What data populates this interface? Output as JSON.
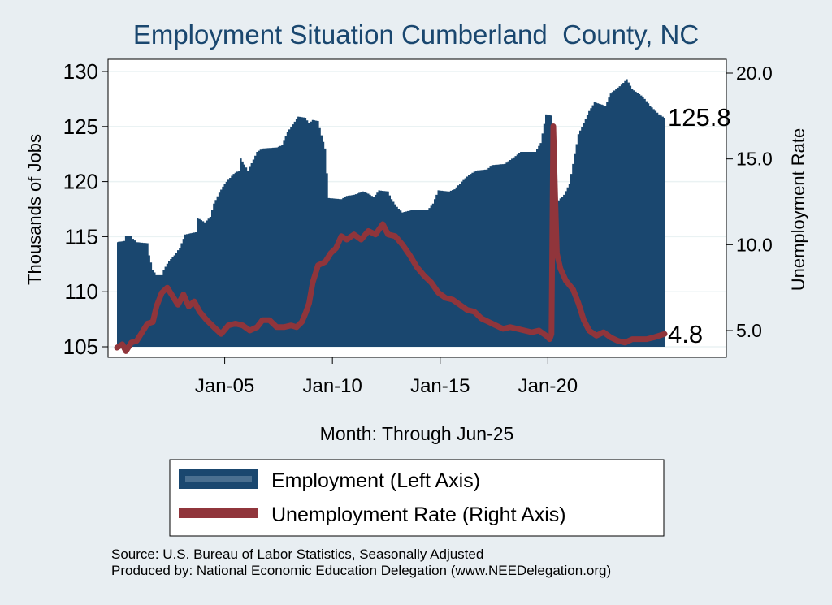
{
  "title": "Employment Situation Cumberland  County, NC",
  "chart_data": {
    "type": "area+line",
    "title": "Employment Situation Cumberland  County, NC",
    "xlabel": "Month: Through Jun-25",
    "ylabel_left": "Thousands of Jobs",
    "ylabel_right": "Unemployment Rate",
    "x_range": [
      "Jan-00",
      "Jun-25"
    ],
    "x_ticks": [
      "Jan-05",
      "Jan-10",
      "Jan-15",
      "Jan-20"
    ],
    "ylim_left": [
      105,
      130
    ],
    "yticks_left": [
      "105",
      "110",
      "115",
      "120",
      "125",
      "130"
    ],
    "ylim_right": [
      3.4,
      20.0
    ],
    "yticks_right": [
      "5.0",
      "10.0",
      "15.0",
      "20.0"
    ],
    "grid": true,
    "legend_position": "bottom",
    "series": [
      {
        "name": "Employment (Left Axis)",
        "type": "area",
        "color": "#1a476f",
        "end_label": "125.8",
        "points": [
          [
            "2000-01",
            114.5
          ],
          [
            "2000-05",
            114.6
          ],
          [
            "2000-06",
            115.1
          ],
          [
            "2000-09",
            115.1
          ],
          [
            "2000-10",
            114.8
          ],
          [
            "2000-12",
            114.5
          ],
          [
            "2001-06",
            114.4
          ],
          [
            "2001-07",
            113.3
          ],
          [
            "2001-09",
            112.0
          ],
          [
            "2001-11",
            111.5
          ],
          [
            "2002-02",
            111.5
          ],
          [
            "2002-03",
            112.0
          ],
          [
            "2002-06",
            112.8
          ],
          [
            "2002-09",
            113.3
          ],
          [
            "2002-12",
            114.0
          ],
          [
            "2003-03",
            115.2
          ],
          [
            "2003-09",
            115.4
          ],
          [
            "2003-10",
            116.7
          ],
          [
            "2004-02",
            116.3
          ],
          [
            "2004-05",
            116.8
          ],
          [
            "2004-07",
            118.0
          ],
          [
            "2004-10",
            119.0
          ],
          [
            "2005-01",
            119.8
          ],
          [
            "2005-06",
            120.7
          ],
          [
            "2005-09",
            121.0
          ],
          [
            "2005-10",
            122.1
          ],
          [
            "2006-02",
            121.0
          ],
          [
            "2006-05",
            122.0
          ],
          [
            "2006-07",
            122.7
          ],
          [
            "2006-10",
            123.0
          ],
          [
            "2007-06",
            123.1
          ],
          [
            "2007-09",
            123.3
          ],
          [
            "2007-12",
            124.5
          ],
          [
            "2008-03",
            125.2
          ],
          [
            "2008-06",
            125.9
          ],
          [
            "2008-10",
            125.8
          ],
          [
            "2008-12",
            125.3
          ],
          [
            "2009-02",
            125.6
          ],
          [
            "2009-05",
            125.5
          ],
          [
            "2009-07",
            124.2
          ],
          [
            "2009-09",
            123.0
          ],
          [
            "2009-11",
            118.5
          ],
          [
            "2010-06",
            118.4
          ],
          [
            "2010-09",
            118.7
          ],
          [
            "2011-01",
            118.8
          ],
          [
            "2011-06",
            119.1
          ],
          [
            "2011-09",
            118.9
          ],
          [
            "2011-12",
            118.6
          ],
          [
            "2012-03",
            119.2
          ],
          [
            "2012-08",
            119.1
          ],
          [
            "2012-10",
            118.4
          ],
          [
            "2013-01",
            117.7
          ],
          [
            "2013-04",
            117.2
          ],
          [
            "2013-09",
            117.4
          ],
          [
            "2014-06",
            117.4
          ],
          [
            "2014-09",
            118.0
          ],
          [
            "2014-12",
            119.2
          ],
          [
            "2015-06",
            119.1
          ],
          [
            "2015-09",
            119.3
          ],
          [
            "2016-01",
            120.0
          ],
          [
            "2016-05",
            120.6
          ],
          [
            "2016-09",
            121.0
          ],
          [
            "2017-03",
            121.1
          ],
          [
            "2017-06",
            121.5
          ],
          [
            "2018-01",
            121.6
          ],
          [
            "2018-06",
            122.2
          ],
          [
            "2018-10",
            122.7
          ],
          [
            "2019-06",
            122.7
          ],
          [
            "2019-09",
            123.5
          ],
          [
            "2019-12",
            126.1
          ],
          [
            "2020-03",
            126.0
          ],
          [
            "2020-04",
            115.7
          ],
          [
            "2020-07",
            118.3
          ],
          [
            "2020-10",
            118.8
          ],
          [
            "2021-01",
            119.8
          ],
          [
            "2021-04",
            122.5
          ],
          [
            "2021-06",
            124.3
          ],
          [
            "2021-09",
            125.3
          ],
          [
            "2021-12",
            126.4
          ],
          [
            "2022-03",
            127.2
          ],
          [
            "2022-09",
            126.9
          ],
          [
            "2022-12",
            128.0
          ],
          [
            "2023-06",
            128.8
          ],
          [
            "2023-09",
            129.3
          ],
          [
            "2023-12",
            128.4
          ],
          [
            "2024-06",
            127.7
          ],
          [
            "2024-10",
            126.9
          ],
          [
            "2025-03",
            126.1
          ],
          [
            "2025-06",
            125.8
          ]
        ]
      },
      {
        "name": "Unemployment Rate (Right Axis)",
        "type": "line",
        "color": "#90353b",
        "end_label": "4.8",
        "points": [
          [
            "2000-01",
            4.0
          ],
          [
            "2000-04",
            4.2
          ],
          [
            "2000-06",
            3.8
          ],
          [
            "2000-09",
            4.3
          ],
          [
            "2000-12",
            4.4
          ],
          [
            "2001-03",
            4.9
          ],
          [
            "2001-06",
            5.4
          ],
          [
            "2001-09",
            5.5
          ],
          [
            "2001-11",
            6.4
          ],
          [
            "2002-02",
            7.2
          ],
          [
            "2002-05",
            7.5
          ],
          [
            "2002-08",
            7.0
          ],
          [
            "2002-11",
            6.5
          ],
          [
            "2003-02",
            7.1
          ],
          [
            "2003-05",
            6.4
          ],
          [
            "2003-08",
            6.7
          ],
          [
            "2003-11",
            6.1
          ],
          [
            "2004-03",
            5.6
          ],
          [
            "2004-07",
            5.2
          ],
          [
            "2004-11",
            4.8
          ],
          [
            "2005-03",
            5.3
          ],
          [
            "2005-07",
            5.4
          ],
          [
            "2005-11",
            5.3
          ],
          [
            "2006-03",
            5.0
          ],
          [
            "2006-07",
            5.2
          ],
          [
            "2006-10",
            5.6
          ],
          [
            "2007-02",
            5.6
          ],
          [
            "2007-06",
            5.2
          ],
          [
            "2007-10",
            5.2
          ],
          [
            "2008-02",
            5.3
          ],
          [
            "2008-05",
            5.2
          ],
          [
            "2008-08",
            5.5
          ],
          [
            "2008-10",
            6.0
          ],
          [
            "2008-12",
            6.6
          ],
          [
            "2009-02",
            7.8
          ],
          [
            "2009-05",
            8.8
          ],
          [
            "2009-09",
            9.0
          ],
          [
            "2009-12",
            9.5
          ],
          [
            "2010-03",
            9.8
          ],
          [
            "2010-06",
            10.5
          ],
          [
            "2010-09",
            10.3
          ],
          [
            "2011-01",
            10.6
          ],
          [
            "2011-05",
            10.3
          ],
          [
            "2011-09",
            10.8
          ],
          [
            "2012-01",
            10.6
          ],
          [
            "2012-05",
            11.2
          ],
          [
            "2012-08",
            10.6
          ],
          [
            "2012-12",
            10.5
          ],
          [
            "2013-04",
            10.0
          ],
          [
            "2013-08",
            9.4
          ],
          [
            "2013-12",
            8.7
          ],
          [
            "2014-04",
            8.2
          ],
          [
            "2014-08",
            7.8
          ],
          [
            "2014-12",
            7.2
          ],
          [
            "2015-04",
            6.9
          ],
          [
            "2015-08",
            6.8
          ],
          [
            "2015-12",
            6.5
          ],
          [
            "2016-04",
            6.2
          ],
          [
            "2016-08",
            6.1
          ],
          [
            "2016-12",
            5.7
          ],
          [
            "2017-04",
            5.5
          ],
          [
            "2017-08",
            5.3
          ],
          [
            "2017-12",
            5.1
          ],
          [
            "2018-04",
            5.2
          ],
          [
            "2018-08",
            5.1
          ],
          [
            "2018-12",
            5.0
          ],
          [
            "2019-04",
            4.9
          ],
          [
            "2019-08",
            5.0
          ],
          [
            "2019-12",
            4.7
          ],
          [
            "2020-02",
            4.5
          ],
          [
            "2020-03",
            4.8
          ],
          [
            "2020-04",
            16.9
          ],
          [
            "2020-05",
            13.0
          ],
          [
            "2020-06",
            9.5
          ],
          [
            "2020-08",
            8.6
          ],
          [
            "2020-11",
            7.9
          ],
          [
            "2021-03",
            7.4
          ],
          [
            "2021-06",
            6.6
          ],
          [
            "2021-09",
            5.6
          ],
          [
            "2021-12",
            5.0
          ],
          [
            "2022-04",
            4.7
          ],
          [
            "2022-08",
            4.9
          ],
          [
            "2022-12",
            4.6
          ],
          [
            "2023-04",
            4.4
          ],
          [
            "2023-08",
            4.3
          ],
          [
            "2023-12",
            4.5
          ],
          [
            "2024-04",
            4.5
          ],
          [
            "2024-08",
            4.5
          ],
          [
            "2024-12",
            4.6
          ],
          [
            "2025-03",
            4.7
          ],
          [
            "2025-06",
            4.8
          ]
        ]
      }
    ]
  },
  "legend": {
    "items": [
      {
        "label": "Employment (Left Axis)",
        "color": "#1a476f"
      },
      {
        "label": "Unemployment Rate (Right Axis)",
        "color": "#90353b"
      }
    ]
  },
  "footer": {
    "source": "Source: U.S. Bureau of Labor Statistics, Seasonally Adjusted",
    "produced": "Produced by: National Economic Education Delegation (www.NEEDelegation.org)"
  }
}
